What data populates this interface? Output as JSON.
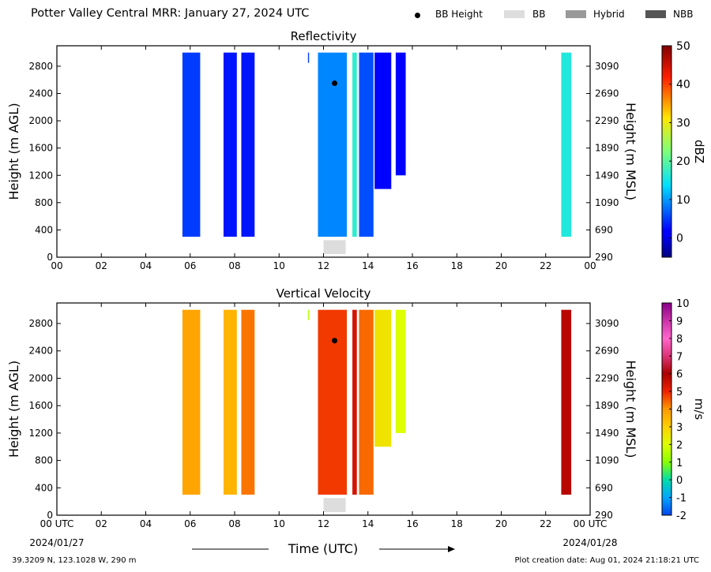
{
  "header": {
    "title": "Potter Valley Central MRR:  January 27, 2024 UTC"
  },
  "legend": {
    "items": [
      {
        "label": "BB Height",
        "color": "#000000",
        "icon": "dot-icon"
      },
      {
        "label": "BB",
        "color": "#dddddd",
        "icon": "swatch-icon"
      },
      {
        "label": "Hybrid",
        "color": "#999999",
        "icon": "swatch-icon"
      },
      {
        "label": "NBB",
        "color": "#555555",
        "icon": "swatch-icon"
      }
    ]
  },
  "chart_data": [
    {
      "type": "heatmap",
      "title": "Reflectivity",
      "ylabel": "Height (m AGL)",
      "ylabel_right": "Height (m MSL)",
      "xlim": [
        0,
        24
      ],
      "ylim": [
        0,
        3100
      ],
      "x_ticks": [
        "00",
        "02",
        "04",
        "06",
        "08",
        "10",
        "12",
        "14",
        "16",
        "18",
        "20",
        "22",
        "00"
      ],
      "y_ticks": [
        "0",
        "400",
        "800",
        "1200",
        "1600",
        "2000",
        "2400",
        "2800"
      ],
      "y_ticks_right": [
        "290",
        "690",
        "1090",
        "1490",
        "1890",
        "2290",
        "2690",
        "3090"
      ],
      "colorbar": {
        "label": "dBZ",
        "min": -5,
        "max": 50,
        "ticks": [
          "0",
          "10",
          "20",
          "30",
          "40",
          "50"
        ],
        "colormap": "jet"
      },
      "bright_band_height": {
        "time_utc": 12.5,
        "height_m_agl": 2550
      },
      "bright_band_period": {
        "start": 12.0,
        "end": 13.0,
        "class": "BB"
      },
      "precip_columns": [
        {
          "start": 5.65,
          "end": 6.45,
          "top": 3000,
          "bottom": 300,
          "value": 5
        },
        {
          "start": 7.5,
          "end": 8.1,
          "top": 3000,
          "bottom": 300,
          "value": 3
        },
        {
          "start": 8.3,
          "end": 8.9,
          "top": 3000,
          "bottom": 300,
          "value": 3
        },
        {
          "start": 11.3,
          "end": 11.35,
          "top": 3000,
          "bottom": 2850,
          "value": 5
        },
        {
          "start": 11.75,
          "end": 13.05,
          "top": 3000,
          "bottom": 300,
          "value": 9
        },
        {
          "start": 13.3,
          "end": 13.5,
          "top": 3000,
          "bottom": 300,
          "value": 17
        },
        {
          "start": 13.6,
          "end": 14.25,
          "top": 3000,
          "bottom": 300,
          "value": 6
        },
        {
          "start": 14.3,
          "end": 15.05,
          "top": 3000,
          "bottom": 1000,
          "value": 2
        },
        {
          "start": 15.25,
          "end": 15.7,
          "top": 3000,
          "bottom": 1200,
          "value": 1
        },
        {
          "start": 22.7,
          "end": 23.15,
          "top": 3000,
          "bottom": 300,
          "value": 16
        }
      ]
    },
    {
      "type": "heatmap",
      "title": "Vertical Velocity",
      "ylabel": "Height (m AGL)",
      "ylabel_right": "Height (m MSL)",
      "xlabel": "Time (UTC)",
      "xlim": [
        0,
        24
      ],
      "ylim": [
        0,
        3100
      ],
      "x_ticks": [
        "00 UTC",
        "02",
        "04",
        "06",
        "08",
        "10",
        "12",
        "14",
        "16",
        "18",
        "20",
        "22",
        "00 UTC"
      ],
      "x_date_left": "2024/01/27",
      "x_date_right": "2024/01/28",
      "y_ticks": [
        "0",
        "400",
        "800",
        "1200",
        "1600",
        "2000",
        "2400",
        "2800"
      ],
      "y_ticks_right": [
        "290",
        "690",
        "1090",
        "1490",
        "1890",
        "2290",
        "2690",
        "3090"
      ],
      "colorbar": {
        "label": "m/s",
        "min": -2,
        "max": 10,
        "ticks": [
          "-2",
          "-1",
          "0",
          "1",
          "2",
          "3",
          "4",
          "5",
          "6",
          "7",
          "8",
          "9",
          "10"
        ]
      },
      "bright_band_height": {
        "time_utc": 12.5,
        "height_m_agl": 2550
      },
      "bright_band_period": {
        "start": 12.0,
        "end": 13.0,
        "class": "BB"
      },
      "precip_columns": [
        {
          "start": 5.65,
          "end": 6.45,
          "top": 3000,
          "bottom": 300,
          "value": 3.8
        },
        {
          "start": 7.5,
          "end": 8.1,
          "top": 3000,
          "bottom": 300,
          "value": 3.5
        },
        {
          "start": 8.3,
          "end": 8.9,
          "top": 3000,
          "bottom": 300,
          "value": 4.3
        },
        {
          "start": 11.3,
          "end": 11.35,
          "top": 3000,
          "bottom": 2850,
          "value": 1.5
        },
        {
          "start": 11.75,
          "end": 13.05,
          "top": 3000,
          "bottom": 300,
          "value": 4.8
        },
        {
          "start": 13.3,
          "end": 13.5,
          "top": 3000,
          "bottom": 300,
          "value": 5.4
        },
        {
          "start": 13.6,
          "end": 14.25,
          "top": 3000,
          "bottom": 300,
          "value": 4.4
        },
        {
          "start": 14.3,
          "end": 15.05,
          "top": 3000,
          "bottom": 1000,
          "value": 2.6
        },
        {
          "start": 15.25,
          "end": 15.7,
          "top": 3000,
          "bottom": 1200,
          "value": 2.0
        },
        {
          "start": 22.7,
          "end": 23.15,
          "top": 3000,
          "bottom": 300,
          "value": 5.8
        }
      ]
    }
  ],
  "footer": {
    "location": "39.3209 N, 123.1028 W, 290 m",
    "creation_date": "Plot creation date: Aug 01, 2024 21:18:21 UTC"
  }
}
